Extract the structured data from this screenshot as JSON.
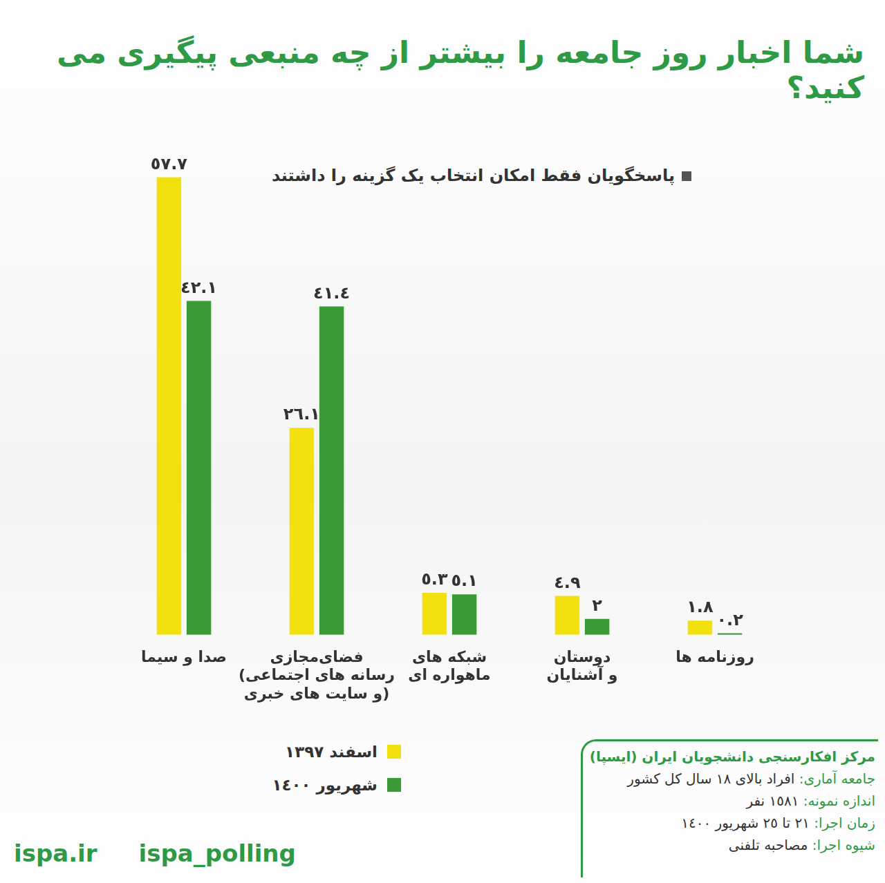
{
  "chart_data": {
    "type": "bar",
    "title": "شما اخبار روز جامعه را بیشتر از چه منبعی پیگیری می کنید؟",
    "subtitle": "پاسخگویان فقط امکان انتخاب یک گزینه را داشتند",
    "categories": [
      "صدا و سیما",
      "فضای‌مجازی\n(رسانه های اجتماعی\nو سایت های خبری)",
      "شبکه های\nماهواره ای",
      "دوستان\nو آشنایان",
      "روزنامه ها"
    ],
    "series": [
      {
        "name": "اسفند ١٣٩٧",
        "color": "#f2e00f",
        "values": [
          57.7,
          26.1,
          5.3,
          4.9,
          1.8
        ],
        "value_labels": [
          "٥٧.٧",
          "٢٦.١",
          "٥.٣",
          "٤.٩",
          "١.٨"
        ]
      },
      {
        "name": "شهریور ١٤٠٠",
        "color": "#3a9a35",
        "values": [
          42.1,
          41.4,
          5.1,
          2,
          0.2
        ],
        "value_labels": [
          "٤٢.١",
          "٤١.٤",
          "٥.١",
          "٢",
          "٠.٢"
        ]
      }
    ],
    "ylim": [
      0,
      60
    ],
    "grid": false,
    "data_labels": true,
    "tick_labels": "x",
    "annotations": [
      "مرکز افکارسنجی دانشجویان ایران (ایسپا)",
      "جامعه آماری: افراد بالای ١٨ سال کل کشور",
      "اندازه نمونه: ١٥٨١ نفر",
      "زمان اجرا: ٢١ تا ٢٥ شهریور ١٤٠٠",
      "شیوه اجرا: مصاحبه تلفنی",
      "ispa.ir",
      "ispa_polling"
    ]
  }
}
